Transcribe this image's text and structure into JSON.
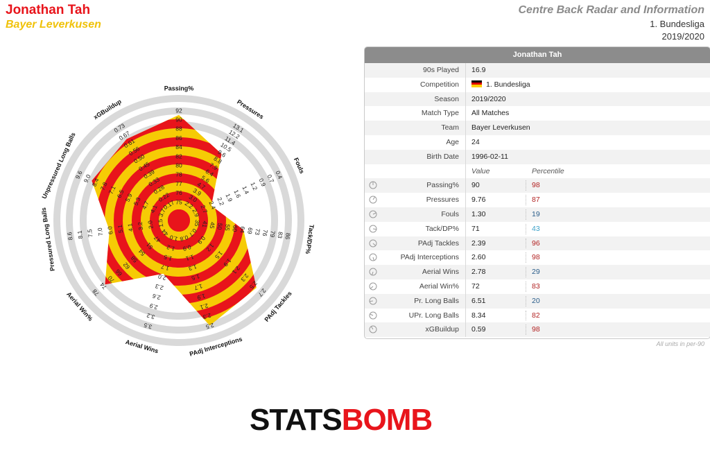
{
  "header": {
    "player": "Jonathan Tah",
    "team": "Bayer Leverkusen",
    "title": "Centre Back Radar and Information",
    "league": "1. Bundesliga",
    "season": "2019/2020"
  },
  "colors": {
    "red": "#e8141b",
    "yellow": "#f6cb05",
    "ring_gray": "#d9d9d9"
  },
  "info": {
    "title": "Jonathan Tah",
    "rows": [
      {
        "label": "90s Played",
        "value": "16.9"
      },
      {
        "label": "Competition",
        "value": "1. Bundesliga"
      },
      {
        "label": "Season",
        "value": "2019/2020"
      },
      {
        "label": "Match Type",
        "value": "All Matches"
      },
      {
        "label": "Team",
        "value": "Bayer Leverkusen"
      },
      {
        "label": "Age",
        "value": "24"
      },
      {
        "label": "Birth Date",
        "value": "1996-02-11"
      }
    ],
    "col_value": "Value",
    "col_percentile": "Percentile",
    "footnote": "All units in per-90"
  },
  "stats": [
    {
      "label": "Passing%",
      "value": "90",
      "percentile": "98",
      "pct_color": "#b22222"
    },
    {
      "label": "Pressures",
      "value": "9.76",
      "percentile": "87",
      "pct_color": "#b22222"
    },
    {
      "label": "Fouls",
      "value": "1.30",
      "percentile": "19",
      "pct_color": "#2a5d8a"
    },
    {
      "label": "Tack/DP%",
      "value": "71",
      "percentile": "43",
      "pct_color": "#3aa0c8"
    },
    {
      "label": "PAdj Tackles",
      "value": "2.39",
      "percentile": "96",
      "pct_color": "#b22222"
    },
    {
      "label": "PAdj Interceptions",
      "value": "2.60",
      "percentile": "98",
      "pct_color": "#b22222"
    },
    {
      "label": "Aerial Wins",
      "value": "2.78",
      "percentile": "29",
      "pct_color": "#2a5d8a"
    },
    {
      "label": "Aerial Win%",
      "value": "72",
      "percentile": "83",
      "pct_color": "#b22222"
    },
    {
      "label": "Pr. Long Balls",
      "value": "6.51",
      "percentile": "20",
      "pct_color": "#2a5d8a"
    },
    {
      "label": "UPr. Long Balls",
      "value": "8.34",
      "percentile": "82",
      "pct_color": "#b22222"
    },
    {
      "label": "xGBuildup",
      "value": "0.59",
      "percentile": "98",
      "pct_color": "#b22222"
    }
  ],
  "chart_data": {
    "type": "radar",
    "axes": [
      {
        "label": "Passing%",
        "ticks": [
          "75",
          "76",
          "77",
          "78",
          "80",
          "82",
          "84",
          "86",
          "88",
          "90",
          "92"
        ]
      },
      {
        "label": "Pressures",
        "ticks": [
          "2.2",
          "3.0",
          "3.9",
          "4.7",
          "5.6",
          "6.4",
          "7.9",
          "8.8",
          "9.6",
          "10.5",
          "11.4",
          "12.2",
          "13.1"
        ]
      },
      {
        "label": "Fouls",
        "ticks": [
          "2.9",
          "2.7",
          "2.4",
          "2.2",
          "1.9",
          "1.6",
          "1.4",
          "1.2",
          "0.9",
          "0.7",
          "0.4"
        ]
      },
      {
        "label": "Tack/DP%",
        "ticks": [
          "35",
          "41",
          "45",
          "50",
          "55",
          "60",
          "64",
          "69",
          "73",
          "76",
          "79",
          "83",
          "86"
        ]
      },
      {
        "label": "PAdj Tackles",
        "ticks": [
          "0.7",
          "0.9",
          "1.2",
          "1.5",
          "1.9",
          "2.1",
          "2.3",
          "2.5",
          "2.7"
        ]
      },
      {
        "label": "PAdj Interceptions",
        "ticks": [
          "0.8",
          "0.9",
          "1.1",
          "1.3",
          "1.5",
          "1.7",
          "1.9",
          "2.1",
          "2.3",
          "2.5"
        ]
      },
      {
        "label": "Aerial Wins",
        "ticks": [
          "1.0",
          "1.2",
          "1.5",
          "1.7",
          "2.0",
          "2.3",
          "2.6",
          "2.9",
          "3.2",
          "3.5"
        ]
      },
      {
        "label": "Aerial Win%",
        "ticks": [
          "44",
          "47",
          "51",
          "54",
          "58",
          "62",
          "66",
          "70",
          "74",
          "78"
        ]
      },
      {
        "label": "Pressured Long Balls",
        "ticks": [
          "1.5",
          "2.0",
          "3.2",
          "4.1",
          "5.1",
          "6.0",
          "7.0",
          "7.5",
          "8.1",
          "8.6"
        ]
      },
      {
        "label": "Unpressured Long Balls",
        "ticks": [
          "3.7",
          "4.1",
          "4.7",
          "5.3",
          "5.9",
          "6.5",
          "7.1",
          "7.8",
          "8.4",
          "9.0",
          "9.6"
        ]
      },
      {
        "label": "xGBuildup",
        "ticks": [
          "0.17",
          "0.22",
          "0.28",
          "0.33",
          "0.39",
          "0.45",
          "0.50",
          "0.56",
          "0.61",
          "0.67",
          "0.73"
        ]
      }
    ],
    "values": [
      90,
      9.76,
      1.3,
      71,
      2.39,
      2.6,
      2.78,
      72,
      6.51,
      8.34,
      0.59
    ],
    "fractions": [
      0.96,
      0.69,
      0.25,
      0.55,
      0.93,
      1.0,
      0.45,
      0.88,
      0.6,
      0.86,
      0.87
    ],
    "ranges": [
      [
        75,
        92
      ],
      [
        2.2,
        13.1
      ],
      [
        2.9,
        0.4
      ],
      [
        35,
        86
      ],
      [
        0.7,
        2.7
      ],
      [
        0.8,
        2.5
      ],
      [
        1.0,
        3.5
      ],
      [
        44,
        78
      ],
      [
        1.5,
        8.6
      ],
      [
        3.7,
        9.6
      ],
      [
        0.17,
        0.73
      ]
    ]
  },
  "logo": {
    "part1": "STATS",
    "part2": "BOMB"
  }
}
